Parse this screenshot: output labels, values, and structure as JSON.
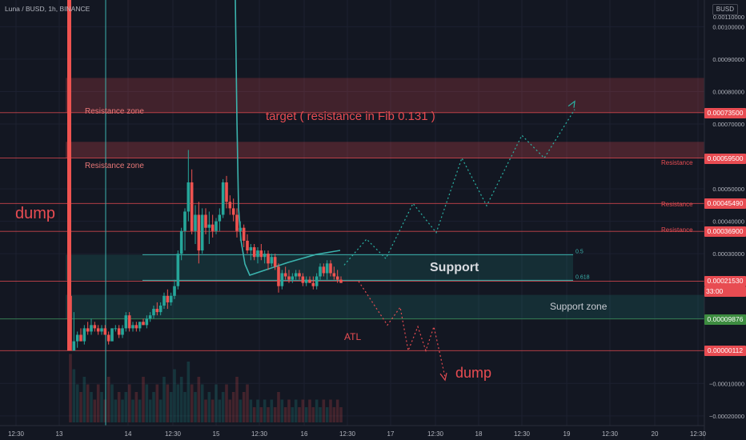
{
  "header": {
    "symbol": "Luna / BUSD, 1h, BINANCE",
    "currency": "BUSD"
  },
  "colors": {
    "background": "#131722",
    "up": "#26a69a",
    "down": "#ef5350",
    "resistance": "#e84c52",
    "support": "#26a69a",
    "teal_line": "#3bb3ad",
    "label_red": "#e84c52",
    "label_green": "#3d8c40",
    "zone_red": "#7a2a33",
    "zone_green": "#1e3a2e"
  },
  "y_axis": {
    "scale": "linear",
    "range": [
      -0.00023,
      0.00107
    ],
    "ticks": [
      "0.00100000",
      "0.00090000",
      "0.00080000",
      "0.00070000",
      "0.00050000",
      "0.00040000",
      "0.00030000",
      "0.00010000",
      "−0.00010000",
      "−0.00020000"
    ],
    "top_partial": "0.00110000"
  },
  "x_axis": {
    "ticks": [
      "12:30",
      "13",
      "14",
      "12:30",
      "15",
      "12:30",
      "16",
      "12:30",
      "17",
      "12:30",
      "18",
      "12:30",
      "19",
      "12:30",
      "20",
      "12:30"
    ]
  },
  "price_labels": [
    {
      "text": "0.00073500",
      "style": "red",
      "price": 0.000735
    },
    {
      "text": "0.00059500",
      "style": "red",
      "price": 0.000595
    },
    {
      "text": "0.00045490",
      "style": "red",
      "price": 0.0004549
    },
    {
      "text": "0.00036900",
      "style": "red",
      "price": 0.000369
    },
    {
      "text": "0.00021530",
      "sub": "33:00",
      "style": "red",
      "price": 0.0002153
    },
    {
      "text": "0.00009876",
      "style": "green",
      "price": 9.876e-05
    },
    {
      "text": "0.00000112",
      "style": "red",
      "price": 1.12e-06
    }
  ],
  "annotations": {
    "dump_left": "dump",
    "resistance_zone_upper": "Resistance zone",
    "resistance_zone_lower": "Resistance zone",
    "target": "target ( resistance in Fib 0.131 )",
    "resistance_1": "Resistance",
    "resistance_2": "Resistance",
    "resistance_3": "Resistance",
    "support": "Support",
    "support_zone": "Support zone",
    "fib_05": "0.5",
    "fib_0618": "0.618",
    "atl": "ATL",
    "dump_right": "dump"
  },
  "chart_data": {
    "type": "candlestick",
    "title": "Luna / BUSD, 1h, BINANCE",
    "ohlc": [
      [
        0.00017,
        0.00085,
        1.1e-06,
        1.1e-06
      ],
      [
        1.1e-06,
        0.00012,
        1.1e-06,
        3e-05
      ],
      [
        3e-05,
        6e-05,
        1e-05,
        5e-05
      ],
      [
        5e-05,
        7e-05,
        3e-05,
        3e-05
      ],
      [
        3e-05,
        8e-05,
        2e-05,
        7e-05
      ],
      [
        7e-05,
        9e-05,
        5e-05,
        6e-05
      ],
      [
        6e-05,
        0.0001,
        5e-05,
        8e-05
      ],
      [
        8e-05,
        9e-05,
        6e-05,
        7e-05
      ],
      [
        7e-05,
        8e-05,
        5e-05,
        6e-05
      ],
      [
        6e-05,
        8e-05,
        5e-05,
        7e-05
      ],
      [
        7e-05,
        8e-05,
        5e-05,
        5e-05
      ],
      [
        5e-05,
        6e-05,
        2e-05,
        3e-05
      ],
      [
        3e-05,
        7e-05,
        3e-05,
        7e-05
      ],
      [
        7e-05,
        8e-05,
        6e-05,
        7e-05
      ],
      [
        7e-05,
        8e-05,
        4e-05,
        5e-05
      ],
      [
        5e-05,
        8e-05,
        4e-05,
        7e-05
      ],
      [
        7e-05,
        0.00012,
        6e-05,
        0.00011
      ],
      [
        0.00011,
        0.00012,
        6e-05,
        7e-05
      ],
      [
        7e-05,
        9e-05,
        6e-05,
        8e-05
      ],
      [
        8e-05,
        9e-05,
        6e-05,
        7e-05
      ],
      [
        7e-05,
        9e-05,
        6e-05,
        9e-05
      ],
      [
        9e-05,
        0.0001,
        8e-05,
        8e-05
      ],
      [
        8e-05,
        0.00011,
        7e-05,
        0.0001
      ],
      [
        0.0001,
        0.00012,
        9e-05,
        0.00011
      ],
      [
        0.00011,
        0.00014,
        0.0001,
        0.00013
      ],
      [
        0.00013,
        0.00015,
        0.00011,
        0.00012
      ],
      [
        0.00012,
        0.00015,
        0.00011,
        0.00014
      ],
      [
        0.00014,
        0.00018,
        0.00013,
        0.00017
      ],
      [
        0.00017,
        0.00019,
        0.00013,
        0.00015
      ],
      [
        0.00015,
        0.00018,
        0.00014,
        0.00017
      ],
      [
        0.00017,
        0.00022,
        0.00016,
        0.0002
      ],
      [
        0.0002,
        0.00031,
        0.00019,
        0.0003
      ],
      [
        0.0003,
        0.00038,
        0.00028,
        0.00037
      ],
      [
        0.00037,
        0.00044,
        0.00031,
        0.00043
      ],
      [
        0.00043,
        0.00062,
        0.0004,
        0.00052
      ],
      [
        0.00052,
        0.00056,
        0.00036,
        0.00037
      ],
      [
        0.00037,
        0.00045,
        0.00033,
        0.00042
      ],
      [
        0.00042,
        0.00046,
        0.00027,
        0.00031
      ],
      [
        0.00031,
        0.00044,
        0.0003,
        0.00042
      ],
      [
        0.00042,
        0.00044,
        0.00036,
        0.00038
      ],
      [
        0.00038,
        0.00043,
        0.00033,
        0.00039
      ],
      [
        0.00039,
        0.00042,
        0.00035,
        0.00037
      ],
      [
        0.00037,
        0.00041,
        0.00036,
        0.0004
      ],
      [
        0.0004,
        0.00044,
        0.00037,
        0.00042
      ],
      [
        0.00042,
        0.00053,
        0.00041,
        0.00052
      ],
      [
        0.00052,
        0.00054,
        0.00044,
        0.00046
      ],
      [
        0.00046,
        0.00048,
        0.00042,
        0.00044
      ],
      [
        0.00044,
        0.00047,
        0.0004,
        0.00042
      ],
      [
        0.00042,
        0.00044,
        0.00035,
        0.00037
      ],
      [
        0.00037,
        0.0004,
        0.00034,
        0.00038
      ],
      [
        0.00038,
        0.00039,
        0.00032,
        0.00034
      ],
      [
        0.00034,
        0.00036,
        0.0003,
        0.00031
      ],
      [
        0.00031,
        0.00033,
        0.00028,
        0.00032
      ],
      [
        0.00032,
        0.00033,
        0.00028,
        0.00029
      ],
      [
        0.00029,
        0.00032,
        0.00027,
        0.00031
      ],
      [
        0.00031,
        0.00033,
        0.00028,
        0.00029
      ],
      [
        0.00029,
        0.00031,
        0.00027,
        0.0003
      ],
      [
        0.0003,
        0.00031,
        0.00025,
        0.00027
      ],
      [
        0.00027,
        0.0003,
        0.00026,
        0.00029
      ],
      [
        0.00029,
        0.0003,
        0.00025,
        0.00026
      ],
      [
        0.00026,
        0.00027,
        0.00018,
        0.0002
      ],
      [
        0.0002,
        0.00025,
        0.00019,
        0.00024
      ],
      [
        0.00024,
        0.00026,
        0.00022,
        0.00023
      ],
      [
        0.00023,
        0.00025,
        0.00021,
        0.00022
      ],
      [
        0.00022,
        0.00024,
        0.00021,
        0.00023
      ],
      [
        0.00023,
        0.00025,
        0.00022,
        0.00024
      ],
      [
        0.00024,
        0.00025,
        0.00022,
        0.00023
      ],
      [
        0.00023,
        0.00024,
        0.0002,
        0.00021
      ],
      [
        0.00021,
        0.00023,
        0.0002,
        0.00022
      ],
      [
        0.00022,
        0.00023,
        0.00021,
        0.00021
      ],
      [
        0.00021,
        0.00023,
        0.00019,
        0.0002
      ],
      [
        0.0002,
        0.00024,
        0.00019,
        0.00023
      ],
      [
        0.00023,
        0.00027,
        0.00022,
        0.00026
      ],
      [
        0.00026,
        0.00027,
        0.00023,
        0.00024
      ],
      [
        0.00024,
        0.00028,
        0.00022,
        0.00027
      ],
      [
        0.00027,
        0.00028,
        0.00023,
        0.00024
      ],
      [
        0.00024,
        0.00026,
        0.00022,
        0.00023
      ],
      [
        0.00023,
        0.00025,
        0.00021,
        0.00022
      ],
      [
        0.00022,
        0.00023,
        0.00021,
        0.00021
      ]
    ],
    "volume": [
      0.9,
      0.7,
      0.5,
      0.4,
      0.6,
      0.5,
      0.4,
      0.3,
      0.5,
      0.4,
      0.3,
      0.6,
      0.5,
      0.3,
      0.4,
      0.3,
      0.4,
      0.5,
      0.3,
      0.4,
      0.3,
      0.6,
      0.5,
      0.3,
      0.4,
      0.5,
      0.3,
      0.6,
      0.5,
      0.4,
      0.7,
      0.5,
      0.6,
      0.4,
      0.8,
      0.5,
      0.4,
      0.6,
      0.5,
      0.3,
      0.4,
      0.3,
      0.5,
      0.3,
      0.4,
      0.5,
      0.3,
      0.4,
      0.6,
      0.3,
      0.4,
      0.5,
      0.3,
      0.2,
      0.3,
      0.2,
      0.3,
      0.2,
      0.3,
      0.2,
      0.4,
      0.3,
      0.2,
      0.3,
      0.2,
      0.3,
      0.2,
      0.3,
      0.2,
      0.3,
      0.2,
      0.3,
      0.2,
      0.3,
      0.2,
      0.3,
      0.2,
      0.3,
      0.2
    ],
    "horizontal_levels": [
      0.000735,
      0.000595,
      0.0004549,
      0.000369,
      0.0002153,
      9.876e-05,
      1.12e-06
    ],
    "zones": [
      {
        "name": "Resistance zone",
        "from": 0.000735,
        "to": 0.000842
      },
      {
        "name": "Resistance zone",
        "from": 0.000595,
        "to": 0.000645
      },
      {
        "name": "Support",
        "from": 0.000218,
        "to": 0.000297
      },
      {
        "name": "Support zone",
        "from": 9.876e-05,
        "to": 0.000173
      }
    ],
    "fib_levels": [
      {
        "label": "0.5",
        "price": 0.000297
      },
      {
        "label": "0.618",
        "price": 0.000218
      }
    ],
    "projection_up": [
      0.000265,
      0.000345,
      0.000285,
      0.000455,
      0.000365,
      0.000595,
      0.000448,
      0.000665,
      0.000595,
      0.000745
    ],
    "projection_down": [
      0.000215,
      8e-05,
      0.000135,
      1.12e-06,
      7.5e-05,
      1.12e-06,
      7.5e-05,
      -8e-05
    ]
  }
}
